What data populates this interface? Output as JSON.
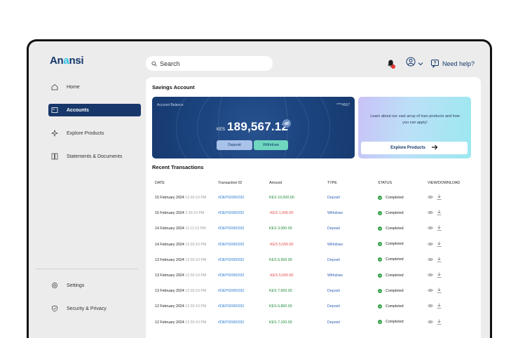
{
  "brand": {
    "name_dark": "An",
    "name_accent": "a",
    "name_rest": "nsi"
  },
  "sidebar": {
    "items": [
      {
        "label": "Home",
        "icon": "home-icon"
      },
      {
        "label": "Accounts",
        "icon": "accounts-icon",
        "active": true
      },
      {
        "label": "Explore Products",
        "icon": "sparkle-icon"
      },
      {
        "label": "Statements & Documents",
        "icon": "documents-icon"
      }
    ],
    "bottom_items": [
      {
        "label": "Settings",
        "icon": "gear-icon"
      },
      {
        "label": "Security & Privacy",
        "icon": "shield-icon"
      }
    ]
  },
  "header": {
    "search_placeholder": "Search",
    "help_label": "Need help?"
  },
  "savings": {
    "title": "Savings Account",
    "balance_label": "Account Balance",
    "account_mask": "****4567",
    "currency": "KES",
    "balance": "189,567.12",
    "deposit_label": "Deposit",
    "withdraw_label": "Withdraw"
  },
  "promo": {
    "text": "Learn about our vast array of loan products and how you can apply!",
    "button_label": "Explore Products"
  },
  "transactions": {
    "title": "Recent Transactions",
    "headers": [
      "DATE",
      "Transaction ID",
      "Amount",
      "TYPE",
      "STATUS",
      "VIEW/DOWNLOAD"
    ],
    "rows": [
      {
        "date": "15 February 2024",
        "time": "12:30:10 PM",
        "id": "#DEP93090292",
        "amount": "KES 10,000.00",
        "type": "Deposit",
        "status": "Completed"
      },
      {
        "date": "15 February 2024",
        "time": "2:30:10 PM",
        "id": "#DEP93090292",
        "amount": "-KES 1,000.00",
        "type": "Withdraw",
        "status": "Completed"
      },
      {
        "date": "14 February 2024",
        "time": "11:11:13 PM",
        "id": "#DEP93090292",
        "amount": "KES 3,000.00",
        "type": "Deposit",
        "status": "Completed"
      },
      {
        "date": "14 February 2024",
        "time": "12:30:10 PM",
        "id": "#DEP93090292",
        "amount": "-KES 5,550.00",
        "type": "Withdraw",
        "status": "Completed"
      },
      {
        "date": "13 February 2024",
        "time": "12:30:10 PM",
        "id": "#DEP93090292",
        "amount": "KES 6,500.00",
        "type": "Deposit",
        "status": "Completed"
      },
      {
        "date": "13 February 2024",
        "time": "12:30:10 PM",
        "id": "#DEP93090292",
        "amount": "-KES 5,550.00",
        "type": "Withdraw",
        "status": "Completed"
      },
      {
        "date": "13 February 2024",
        "time": "12:30:10 PM",
        "id": "#DEP93090292",
        "amount": "KES 7,600.00",
        "type": "Deposit",
        "status": "Completed"
      },
      {
        "date": "12 February 2024",
        "time": "12:30:10 PM",
        "id": "#DEP93090292",
        "amount": "KES 6,800.00",
        "type": "Deposit",
        "status": "Completed"
      },
      {
        "date": "12 February 2024",
        "time": "12:30:10 PM",
        "id": "#DEP93090292",
        "amount": "KES 7,100.00",
        "type": "Deposit",
        "status": "Completed"
      }
    ]
  },
  "colors": {
    "brand_dark": "#13386b",
    "brand_accent": "#2ec4e6",
    "positive": "#1e8a3a",
    "negative": "#e24a4a",
    "link": "#2f7fd1"
  }
}
